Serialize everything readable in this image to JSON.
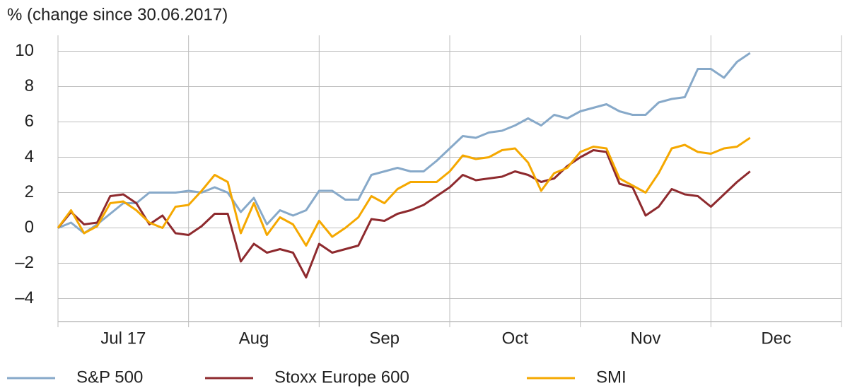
{
  "chart_data": {
    "type": "line",
    "title": "% (change since 30.06.2017)",
    "categories": [
      "Jul 17",
      "Aug",
      "Sep",
      "Oct",
      "Nov",
      "Dec"
    ],
    "xlim": [
      0,
      6
    ],
    "xticks": [
      0,
      1,
      2,
      3,
      4,
      5,
      6
    ],
    "ylim": [
      -5.3,
      10.9
    ],
    "yticks": [
      {
        "value": -4,
        "label": "–4"
      },
      {
        "value": -2,
        "label": "–2"
      },
      0,
      2,
      4,
      6,
      8,
      10
    ],
    "grid": true,
    "legend": "bottom",
    "x": [
      0,
      0.1,
      0.2,
      0.3,
      0.4,
      0.5,
      0.6,
      0.7,
      0.8,
      0.9,
      1.0,
      1.1,
      1.2,
      1.3,
      1.4,
      1.5,
      1.6,
      1.7,
      1.8,
      1.9,
      2.0,
      2.1,
      2.2,
      2.3,
      2.4,
      2.5,
      2.6,
      2.7,
      2.8,
      2.9,
      3.0,
      3.1,
      3.2,
      3.3,
      3.4,
      3.5,
      3.6,
      3.7,
      3.8,
      3.9,
      4.0,
      4.1,
      4.2,
      4.3,
      4.4,
      4.5,
      4.6,
      4.7,
      4.8,
      4.9,
      5.0,
      5.1,
      5.2,
      5.3
    ],
    "series": [
      {
        "name": "S&P 500",
        "color": "#87a9c9",
        "values": [
          0,
          0.3,
          -0.3,
          0.2,
          0.8,
          1.4,
          1.4,
          2.0,
          2.0,
          2.0,
          2.1,
          2.0,
          2.3,
          2.0,
          0.9,
          1.7,
          0.2,
          1.0,
          0.7,
          1.0,
          2.1,
          2.1,
          1.6,
          1.6,
          3.0,
          3.2,
          3.4,
          3.2,
          3.2,
          3.8,
          4.5,
          5.2,
          5.1,
          5.4,
          5.5,
          5.8,
          6.2,
          5.8,
          6.4,
          6.2,
          6.6,
          6.8,
          7.0,
          6.6,
          6.4,
          6.4,
          7.1,
          7.3,
          7.4,
          9.0,
          9.0,
          8.5,
          9.4,
          9.9
        ]
      },
      {
        "name": "Stoxx Europe 600",
        "color": "#8e2a2e",
        "values": [
          0,
          0.9,
          0.2,
          0.3,
          1.8,
          1.9,
          1.4,
          0.2,
          0.7,
          -0.3,
          -0.4,
          0.1,
          0.8,
          0.8,
          -1.9,
          -0.9,
          -1.4,
          -1.2,
          -1.4,
          -2.8,
          -0.9,
          -1.4,
          -1.2,
          -1.0,
          0.5,
          0.4,
          0.8,
          1.0,
          1.3,
          1.8,
          2.3,
          3.0,
          2.7,
          2.8,
          2.9,
          3.2,
          3.0,
          2.6,
          2.8,
          3.5,
          4.0,
          4.4,
          4.3,
          2.5,
          2.3,
          0.7,
          1.2,
          2.2,
          1.9,
          1.8,
          1.2,
          1.9,
          2.6,
          3.2
        ]
      },
      {
        "name": "SMI",
        "color": "#f5a800",
        "values": [
          0,
          1.0,
          -0.3,
          0.1,
          1.4,
          1.5,
          1.0,
          0.3,
          0.0,
          1.2,
          1.3,
          2.1,
          3.0,
          2.6,
          -0.3,
          1.4,
          -0.4,
          0.6,
          0.2,
          -1.0,
          0.4,
          -0.5,
          0.0,
          0.6,
          1.8,
          1.4,
          2.2,
          2.6,
          2.6,
          2.6,
          3.2,
          4.1,
          3.9,
          4.0,
          4.4,
          4.5,
          3.7,
          2.1,
          3.1,
          3.4,
          4.3,
          4.6,
          4.5,
          2.8,
          2.4,
          2.0,
          3.1,
          4.5,
          4.7,
          4.3,
          4.2,
          4.5,
          4.6,
          5.1
        ]
      }
    ]
  }
}
